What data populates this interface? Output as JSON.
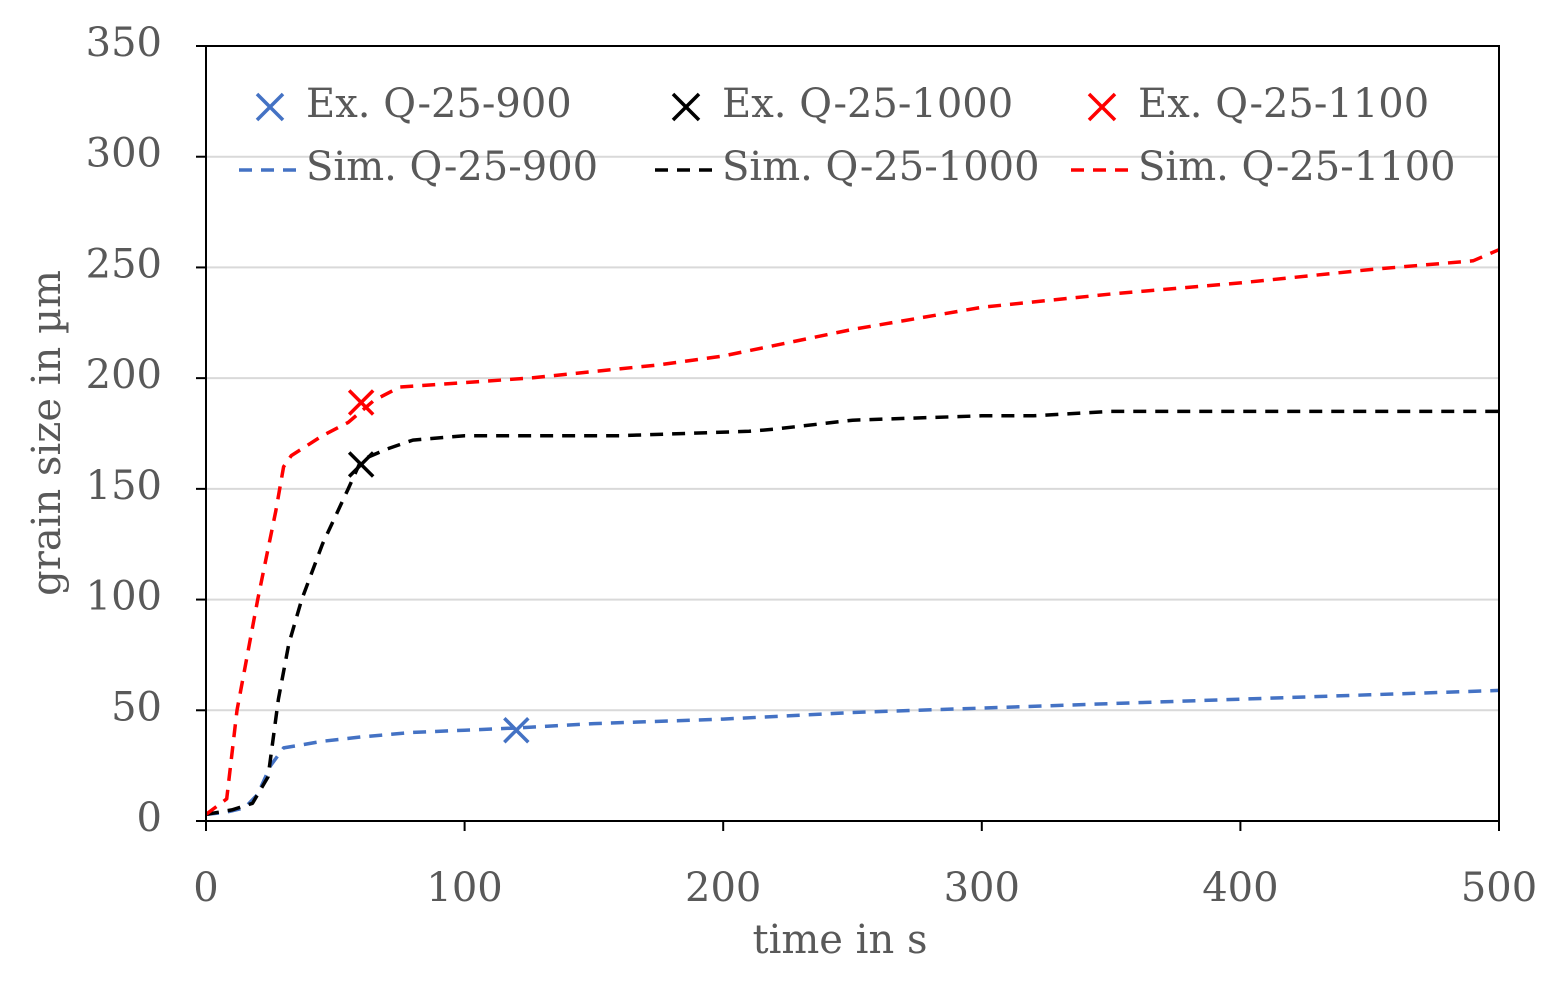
{
  "chart_data": {
    "type": "line",
    "title": "",
    "xlabel": "time in s",
    "ylabel": "grain size in µm",
    "xlim": [
      0,
      500
    ],
    "ylim": [
      0,
      350
    ],
    "xticks": [
      0,
      100,
      200,
      300,
      400,
      500
    ],
    "yticks": [
      0,
      50,
      100,
      150,
      200,
      250,
      300,
      350
    ],
    "grid": "horizontal",
    "legend_position": "top",
    "series": [
      {
        "name": "Sim. Q-25-900",
        "kind": "simulation",
        "style": "dashed",
        "color": "#4472C4",
        "x": [
          0,
          8,
          15,
          20,
          25,
          30,
          45,
          60,
          80,
          100,
          120,
          150,
          200,
          250,
          300,
          350,
          400,
          450,
          500
        ],
        "y": [
          3,
          4,
          6,
          12,
          25,
          33,
          36,
          38,
          40,
          41,
          42,
          44,
          46,
          49,
          51,
          53,
          55,
          57,
          59
        ]
      },
      {
        "name": "Sim. Q-25-1000",
        "kind": "simulation",
        "style": "dashed",
        "color": "#000000",
        "x": [
          0,
          10,
          18,
          24,
          28,
          32,
          37,
          45,
          55,
          60,
          70,
          80,
          100,
          120,
          160,
          210,
          220,
          250,
          300,
          320,
          350,
          400,
          450,
          500
        ],
        "y": [
          3,
          5,
          8,
          20,
          55,
          80,
          100,
          125,
          150,
          163,
          168,
          172,
          174,
          174,
          174,
          176,
          177,
          181,
          183,
          183,
          185,
          185,
          185,
          185
        ]
      },
      {
        "name": "Sim. Q-25-1100",
        "kind": "simulation",
        "style": "dashed",
        "color": "#FF0000",
        "x": [
          0,
          8,
          12,
          20,
          27,
          30,
          33,
          37,
          45,
          55,
          65,
          75,
          100,
          125,
          150,
          175,
          200,
          225,
          250,
          275,
          300,
          325,
          350,
          400,
          450,
          490,
          500
        ],
        "y": [
          3,
          10,
          50,
          100,
          140,
          160,
          165,
          168,
          174,
          180,
          190,
          196,
          198,
          200,
          203,
          206,
          210,
          216,
          222,
          227,
          232,
          235,
          238,
          243,
          249,
          253,
          258
        ]
      }
    ],
    "markers": [
      {
        "name": "Ex. Q-25-900",
        "kind": "experiment",
        "marker": "x",
        "color": "#4472C4",
        "x": 120,
        "y": 41
      },
      {
        "name": "Ex. Q-25-1000",
        "kind": "experiment",
        "marker": "x",
        "color": "#000000",
        "x": 60,
        "y": 161
      },
      {
        "name": "Ex. Q-25-1100",
        "kind": "experiment",
        "marker": "x",
        "color": "#FF0000",
        "x": 60,
        "y": 189
      }
    ],
    "legend": {
      "rows": [
        [
          "Ex. Q-25-900",
          "Ex. Q-25-1000",
          "Ex. Q-25-1100"
        ],
        [
          "Sim. Q-25-900",
          "Sim. Q-25-1000",
          "Sim. Q-25-1100"
        ]
      ]
    }
  }
}
